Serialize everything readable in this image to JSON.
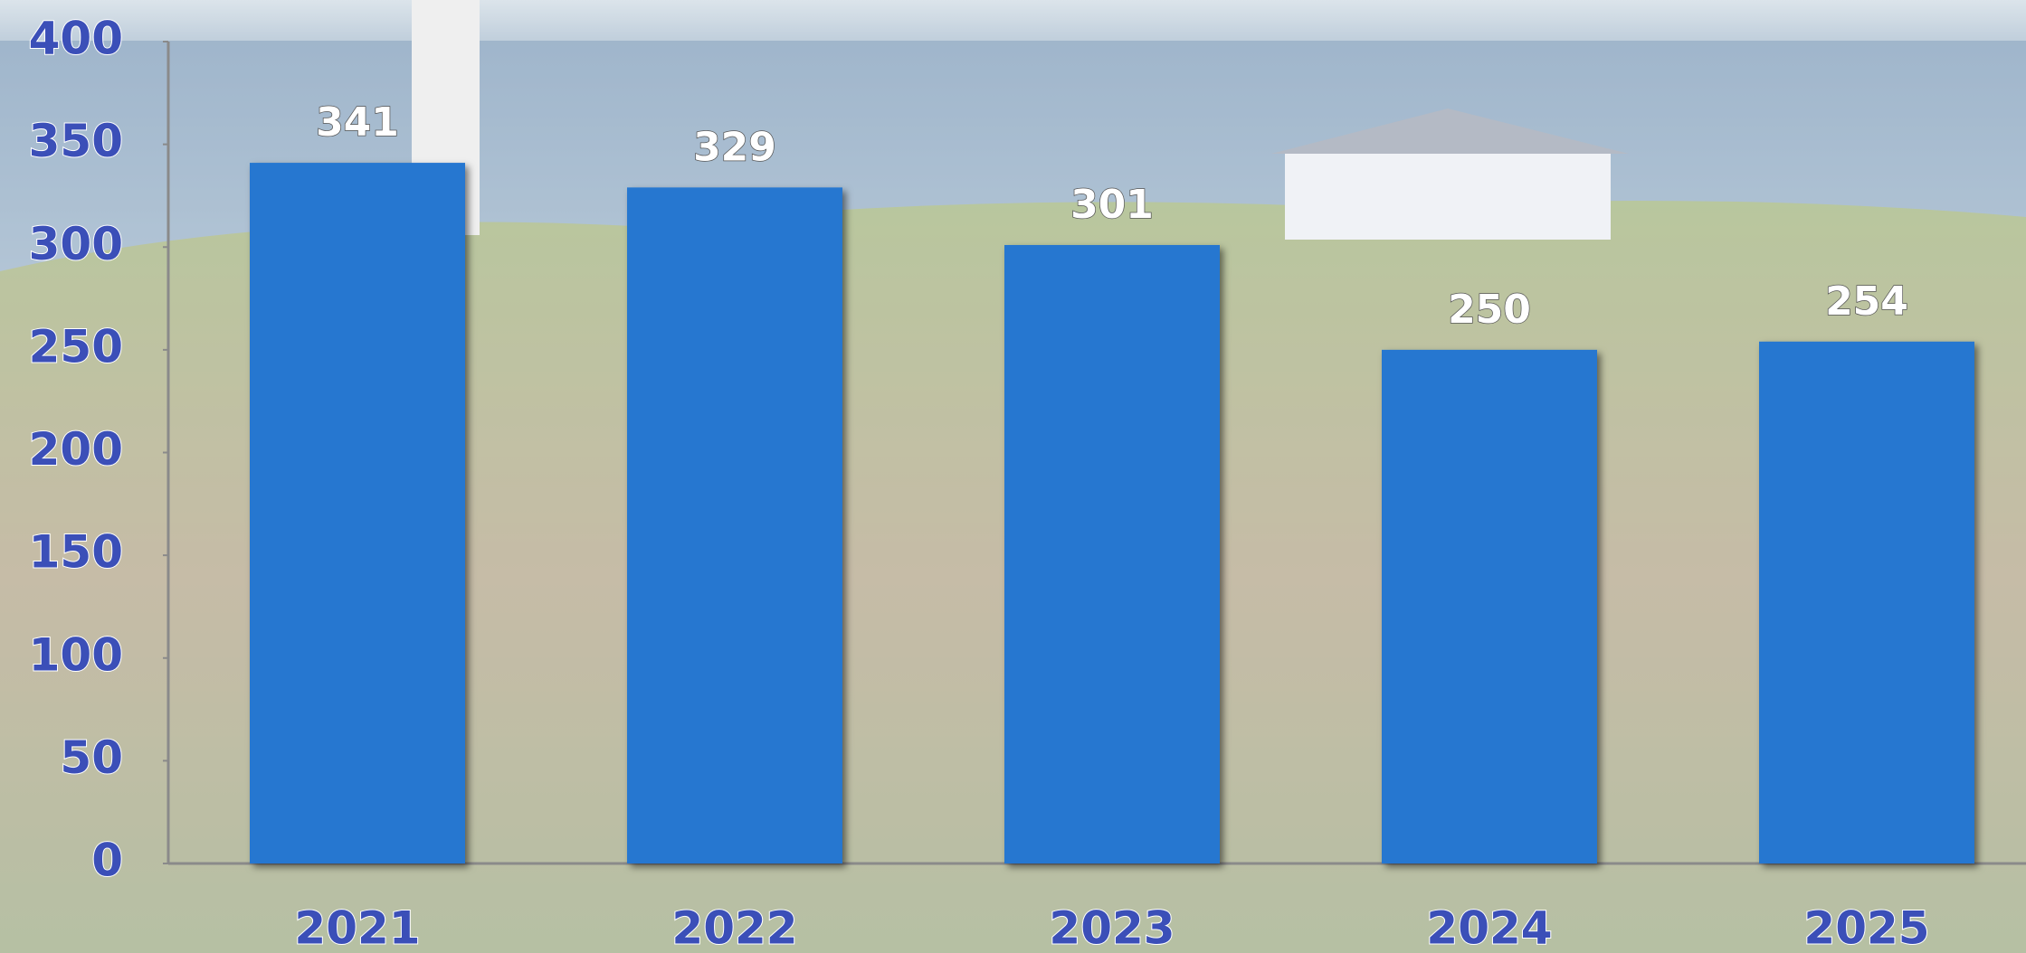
{
  "chart_data": {
    "type": "bar",
    "categories": [
      "2021",
      "2022",
      "2023",
      "2024",
      "2025"
    ],
    "values": [
      341,
      329,
      301,
      250,
      254
    ],
    "color": "#2577d0",
    "ylim": [
      0,
      400
    ],
    "yticks": [
      0,
      50,
      100,
      150,
      200,
      250,
      300,
      350,
      400
    ],
    "grid": false
  }
}
